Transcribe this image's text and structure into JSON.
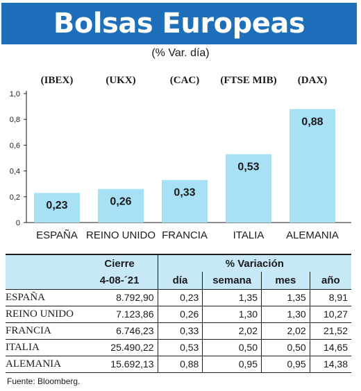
{
  "title": "Bolsas Europeas",
  "subtitle": "(% Var. día)",
  "chart_data": {
    "type": "bar",
    "categories": [
      "ESPAÑA",
      "REINO UNIDO",
      "FRANCIA",
      "ITALIA",
      "ALEMANIA"
    ],
    "indices": [
      "(IBEX)",
      "(UKX)",
      "(CAC)",
      "(FTSE MIB)",
      "(DAX)"
    ],
    "values": [
      0.23,
      0.26,
      0.33,
      0.53,
      0.88
    ],
    "value_labels": [
      "0,23",
      "0,26",
      "0,33",
      "0,53",
      "0,88"
    ],
    "yticks": [
      "0",
      "0,2",
      "0,4",
      "0,6",
      "0,8",
      "1,0"
    ],
    "ylim": [
      0,
      1.0
    ],
    "grid": false,
    "bar_color": "#a8e0f6"
  },
  "table": {
    "group_headers": [
      "Cierre",
      "% Variación"
    ],
    "sub_headers": [
      "4-08-´21",
      "día",
      "semana",
      "mes",
      "año"
    ],
    "rows": [
      {
        "name": "ESPAÑA",
        "cierre": "8.792,90",
        "dia": "0,23",
        "semana": "1,35",
        "mes": "1,35",
        "anio": "8,91"
      },
      {
        "name": "REINO UNIDO",
        "cierre": "7.123,86",
        "dia": "0,26",
        "semana": "1,30",
        "mes": "1,30",
        "anio": "10,27"
      },
      {
        "name": "FRANCIA",
        "cierre": "6.746,23",
        "dia": "0,33",
        "semana": "2,02",
        "mes": "2,02",
        "anio": "21,52"
      },
      {
        "name": "ITALIA",
        "cierre": "25.490,22",
        "dia": "0,53",
        "semana": "0,50",
        "mes": "0,50",
        "anio": "14,65"
      },
      {
        "name": "ALEMANIA",
        "cierre": "15.692,13",
        "dia": "0,88",
        "semana": "0,95",
        "mes": "0,95",
        "anio": "14,38"
      }
    ]
  },
  "source": "Fuente: Bloomberg.",
  "colors": {
    "banner": "#1c6fb8",
    "header_fill": "#c7e8f7",
    "bar": "#a8e0f6"
  }
}
